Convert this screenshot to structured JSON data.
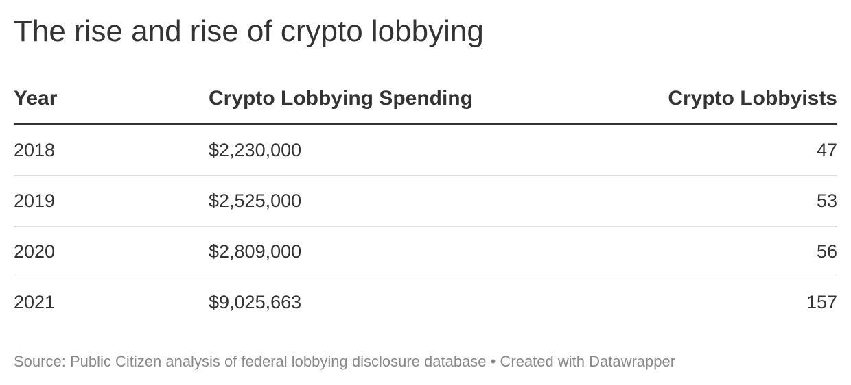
{
  "header": {
    "title": "The rise and rise of crypto lobbying"
  },
  "chart_data": {
    "type": "table",
    "title": "The rise and rise of crypto lobbying",
    "columns": [
      "Year",
      "Crypto Lobbying Spending",
      "Crypto Lobbyists"
    ],
    "rows": [
      [
        "2018",
        "$2,230,000",
        "47"
      ],
      [
        "2019",
        "$2,525,000",
        "53"
      ],
      [
        "2020",
        "$2,809,000",
        "56"
      ],
      [
        "2021",
        "$9,025,663",
        "157"
      ]
    ],
    "x": [
      2018,
      2019,
      2020,
      2021
    ],
    "series": [
      {
        "name": "Crypto Lobbying Spending",
        "values": [
          2230000,
          2525000,
          2809000,
          9025663
        ]
      },
      {
        "name": "Crypto Lobbyists",
        "values": [
          47,
          53,
          56,
          157
        ]
      }
    ]
  },
  "footer": {
    "source_label": "Source:",
    "source_text": "Public Citizen analysis of federal lobbying disclosure database",
    "separator": "•",
    "credit": "Created with Datawrapper"
  }
}
